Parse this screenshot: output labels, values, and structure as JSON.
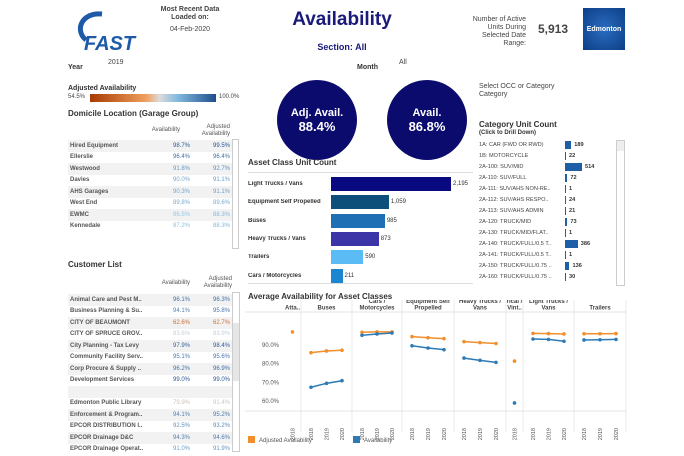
{
  "header": {
    "logo_text": "FAST",
    "loaded_label": "Most Recent Data Loaded on:",
    "loaded_date": "04-Feb-2020",
    "title": "Availability",
    "section": "Section: All",
    "units_label": "Number of Active Units During Selected Date Range:",
    "units_value": "5,913",
    "city_logo": "Edmonton"
  },
  "filters": {
    "year_label": "Year",
    "year_value": "2019",
    "month_label": "Month",
    "month_value": "All",
    "occ_label": "Select OCC or Category",
    "occ_value": "Category"
  },
  "legend_scale": {
    "label": "Adjusted Availability",
    "min": "54.5%",
    "max": "100.0%",
    "low_color": "#a83a00",
    "mid_color": "#dcdcdc",
    "high_color": "#1f4e8c"
  },
  "kpis": {
    "adj_label": "Adj. Avail.",
    "adj_value": "88.4%",
    "avail_label": "Avail.",
    "avail_value": "86.8%",
    "color": "#0b0b6e"
  },
  "domicile": {
    "title": "Domicile Location (Garage Group)",
    "col1": "Availability",
    "col2": "Adjusted Availability",
    "rows": [
      [
        "Hired Equipment",
        "98.7%",
        "99.5%"
      ],
      [
        "Ellerslie",
        "96.4%",
        "96.4%"
      ],
      [
        "Westwood",
        "91.8%",
        "92.7%"
      ],
      [
        "Davies",
        "90.0%",
        "91.1%"
      ],
      [
        "AHS Garages",
        "90.3%",
        "91.1%"
      ],
      [
        "West End",
        "89.8%",
        "89.6%"
      ],
      [
        "EWMC",
        "86.5%",
        "88.3%"
      ],
      [
        "Kennedale",
        "87.2%",
        "88.3%"
      ]
    ]
  },
  "customers": {
    "title": "Customer List",
    "col1": "Availability",
    "col2": "Adjusted Availability",
    "rows": [
      [
        "Animal Care and Pest M..",
        "96.1%",
        "96.3%"
      ],
      [
        "Business Planning & Su..",
        "94.1%",
        "95.8%"
      ],
      [
        "CITY OF BEAUMONT",
        "62.6%",
        "62.7%"
      ],
      [
        "CITY OF SPRUCE GROV..",
        "83.6%",
        "83.9%"
      ],
      [
        "City Planning - Tax Levy",
        "97.9%",
        "98.4%"
      ],
      [
        "Community Facility Serv..",
        "95.1%",
        "95.6%"
      ],
      [
        "Corp Procure & Supply ..",
        "96.2%",
        "96.9%"
      ],
      [
        "Development Services",
        "99.0%",
        "99.0%"
      ],
      [
        "",
        null,
        null
      ],
      [
        "Edmonton Public Library",
        "79.9%",
        "81.4%"
      ],
      [
        "Enforcement & Program..",
        "94.1%",
        "95.2%"
      ],
      [
        "EPCOR DISTRIBUTION I..",
        "92.5%",
        "93.2%"
      ],
      [
        "EPCOR Drainage D&C",
        "94.3%",
        "94.6%"
      ],
      [
        "EPCOR Drainage Operat..",
        "91.0%",
        "91.9%"
      ]
    ]
  },
  "asset_class": {
    "title": "Asset Class Unit Count",
    "items": [
      {
        "label": "Light Trucks / Vans",
        "value": 2195,
        "text": "2,195",
        "color": "#0a0a80"
      },
      {
        "label": "Equipment Self Propelled",
        "value": 1059,
        "text": "1,059",
        "color": "#0b4f7a"
      },
      {
        "label": "Buses",
        "value": 985,
        "text": "985",
        "color": "#1f6fb5"
      },
      {
        "label": "Heavy Trucks / Vans",
        "value": 873,
        "text": "873",
        "color": "#3b35a8"
      },
      {
        "label": "Trailers",
        "value": 590,
        "text": "590",
        "color": "#5bbcf5"
      },
      {
        "label": "Cars / Motorcycles",
        "value": 211,
        "text": "211",
        "color": "#1b86d0"
      }
    ]
  },
  "category": {
    "title": "Category Unit Count",
    "subtitle": "(Click to Drill Down)",
    "max": 514,
    "items": [
      [
        "1A: CAR (FWD OR RWD)",
        189
      ],
      [
        "1B: MOTORCYCLE",
        22
      ],
      [
        "2A-100: SUV/MID",
        514
      ],
      [
        "2A-110: SUV/FULL",
        72
      ],
      [
        "2A-111: SUV/AHS NON-RE..",
        1
      ],
      [
        "2A-112: SUV/AHS RESPO..",
        24
      ],
      [
        "2A-113: SUV/AHS ADMIN",
        21
      ],
      [
        "2A-120: TRUCK/MID",
        73
      ],
      [
        "2A-130: TRUCK/MID/FLAT..",
        1
      ],
      [
        "2A-140: TRUCK/FULL/0.5 T..",
        386
      ],
      [
        "2A-141: TRUCK/FULL/0.5 T..",
        1
      ],
      [
        "2A-150: TRUCK/FULL/0.75 ..",
        136
      ],
      [
        "2A-160: TRUCK/FULL/0.75 ..",
        30
      ]
    ]
  },
  "chart_data": {
    "type": "line",
    "title": "Average Availability for Asset Classes",
    "ylim": [
      57,
      100
    ],
    "yticks": [
      "60.0%",
      "70.0%",
      "80.0%",
      "90.0%"
    ],
    "ytick_values": [
      60,
      70,
      80,
      90
    ],
    "grid": false,
    "legend": "bottom",
    "series_colors": {
      "Adjusted Availability": "#f28e2b",
      "Availability": "#2c7bb6"
    },
    "legend_entries": [
      "Adjusted Availability",
      "Availability"
    ],
    "panels": [
      {
        "name": "Atta..",
        "years": [
          "2018"
        ],
        "adjusted": [
          97.0
        ],
        "availability": [
          null
        ]
      },
      {
        "name": "Buses",
        "years": [
          "2018",
          "2019",
          "2020"
        ],
        "adjusted": [
          85.9,
          86.8,
          87.2
        ],
        "availability": [
          67.4,
          69.5,
          70.9
        ]
      },
      {
        "name": "Cars / Motorcycles",
        "years": [
          "2018",
          "2019",
          "2020"
        ],
        "adjusted": [
          96.8,
          97.0,
          97.0
        ],
        "availability": [
          95.2,
          95.9,
          96.4
        ]
      },
      {
        "name": "Equipment Self Propelled",
        "years": [
          "2018",
          "2019",
          "2020"
        ],
        "adjusted": [
          94.5,
          93.9,
          93.4
        ],
        "availability": [
          89.6,
          88.4,
          87.5
        ]
      },
      {
        "name": "Heavy Trucks / Vans",
        "years": [
          "2018",
          "2019",
          "2020"
        ],
        "adjusted": [
          91.8,
          91.3,
          90.8
        ],
        "availability": [
          83.0,
          81.8,
          80.7
        ]
      },
      {
        "name": "Histo rical / Vint..",
        "years": [
          "2018"
        ],
        "adjusted": [
          81.4
        ],
        "availability": [
          59.0
        ]
      },
      {
        "name": "Light Trucks / Vans",
        "years": [
          "2018",
          "2019",
          "2020"
        ],
        "adjusted": [
          96.2,
          96.1,
          95.9
        ],
        "availability": [
          93.2,
          93.0,
          92.0
        ]
      },
      {
        "name": "Trailers",
        "years": [
          "2018",
          "2019",
          "2020"
        ],
        "adjusted": [
          96.0,
          96.0,
          96.1
        ],
        "availability": [
          92.7,
          92.8,
          93.0
        ]
      }
    ]
  }
}
